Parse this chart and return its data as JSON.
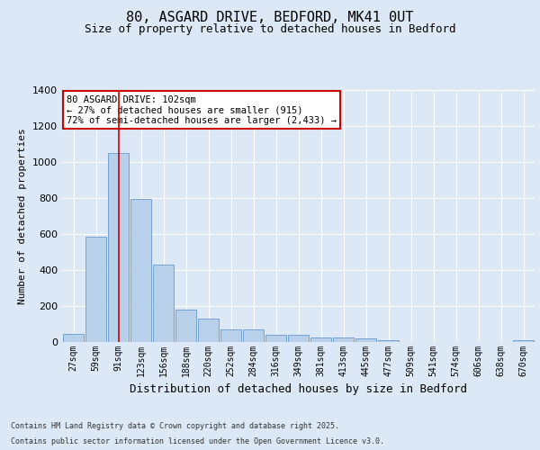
{
  "title": "80, ASGARD DRIVE, BEDFORD, MK41 0UT",
  "subtitle": "Size of property relative to detached houses in Bedford",
  "xlabel": "Distribution of detached houses by size in Bedford",
  "ylabel": "Number of detached properties",
  "categories": [
    "27sqm",
    "59sqm",
    "91sqm",
    "123sqm",
    "156sqm",
    "188sqm",
    "220sqm",
    "252sqm",
    "284sqm",
    "316sqm",
    "349sqm",
    "381sqm",
    "413sqm",
    "445sqm",
    "477sqm",
    "509sqm",
    "541sqm",
    "574sqm",
    "606sqm",
    "638sqm",
    "670sqm"
  ],
  "values": [
    45,
    585,
    1050,
    795,
    430,
    178,
    128,
    68,
    68,
    42,
    42,
    27,
    25,
    20,
    12,
    0,
    0,
    0,
    0,
    0,
    10
  ],
  "bar_color": "#b8d0ea",
  "bar_edge_color": "#6699cc",
  "red_line_x": 2,
  "red_line_label": "80 ASGARD DRIVE: 102sqm",
  "annotation_line2": "← 27% of detached houses are smaller (915)",
  "annotation_line3": "72% of semi-detached houses are larger (2,433) →",
  "annotation_box_color": "#ffffff",
  "annotation_box_edge": "#cc0000",
  "ylim": [
    0,
    1400
  ],
  "yticks": [
    0,
    200,
    400,
    600,
    800,
    1000,
    1200,
    1400
  ],
  "bg_color": "#dce8f5",
  "plot_bg_color": "#dce8f5",
  "footer_line1": "Contains HM Land Registry data © Crown copyright and database right 2025.",
  "footer_line2": "Contains public sector information licensed under the Open Government Licence v3.0.",
  "grid_color": "#ffffff",
  "title_fontsize": 11,
  "subtitle_fontsize": 9,
  "ylabel_fontsize": 8,
  "xlabel_fontsize": 9
}
